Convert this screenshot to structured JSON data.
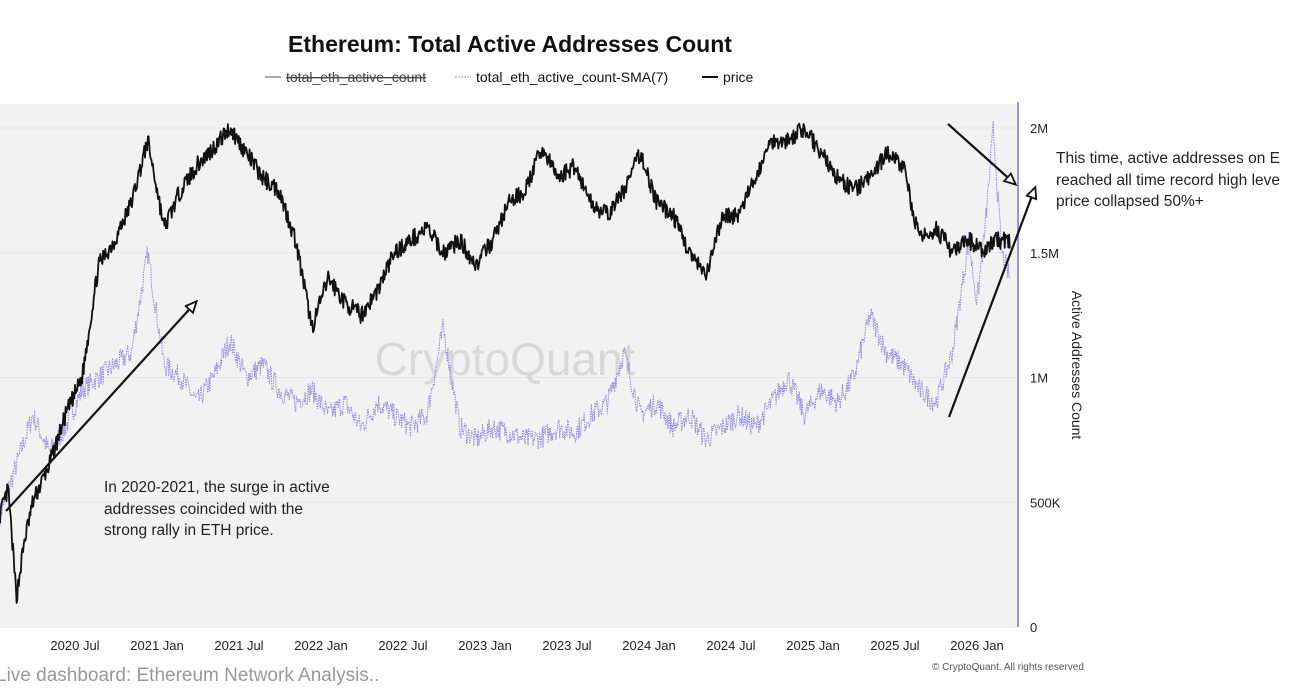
{
  "chart_data": {
    "type": "line",
    "title": "Ethereum: Total Active Addresses Count",
    "legend": [
      {
        "name": "total_eth_active_count",
        "color": "#555555",
        "hidden": true
      },
      {
        "name": "total_eth_active_count-SMA(7)",
        "color": "#9a96e0"
      },
      {
        "name": "price",
        "color": "#111111"
      }
    ],
    "legend_placement": "top-center",
    "x_tick_labels": [
      "2020 Jul",
      "2021 Jan",
      "2021 Jul",
      "2022 Jan",
      "2022 Jul",
      "2023 Jan",
      "2023 Jul",
      "2024 Jan",
      "2024 Jul",
      "2025 Jan",
      "2025 Jul",
      "2026 Jan"
    ],
    "y_right": {
      "label": "Active Addresses Count",
      "ticks": [
        {
          "value": 0,
          "label": "0"
        },
        {
          "value": 500000,
          "label": "500K"
        },
        {
          "value": 1000000,
          "label": "1M"
        },
        {
          "value": 1500000,
          "label": "1.5M"
        },
        {
          "value": 2000000,
          "label": "2M"
        }
      ],
      "range": [
        0,
        2000000
      ]
    },
    "grid": true,
    "series": [
      {
        "name": "total_eth_active_count-SMA(7)",
        "color": "#9a96e0",
        "x": [
          2020.0,
          2020.1,
          2020.2,
          2020.3,
          2020.4,
          2020.5,
          2020.6,
          2020.7,
          2020.8,
          2020.9,
          2021.0,
          2021.1,
          2021.2,
          2021.3,
          2021.4,
          2021.5,
          2021.6,
          2021.7,
          2021.8,
          2021.9,
          2022.0,
          2022.1,
          2022.2,
          2022.3,
          2022.4,
          2022.5,
          2022.6,
          2022.7,
          2022.8,
          2022.9,
          2023.0,
          2023.1,
          2023.2,
          2023.3,
          2023.4,
          2023.5,
          2023.6,
          2023.7,
          2023.8,
          2023.9,
          2024.0,
          2024.1,
          2024.2,
          2024.3,
          2024.4,
          2024.5,
          2024.6,
          2024.7,
          2024.8,
          2024.9,
          2025.0,
          2025.1,
          2025.2,
          2025.3,
          2025.4,
          2025.5,
          2025.6,
          2025.7,
          2025.8,
          2025.9,
          2025.95,
          2026.0,
          2026.05,
          2026.1,
          2026.15
        ],
        "values": [
          450000,
          650000,
          850000,
          700000,
          800000,
          950000,
          1000000,
          1050000,
          1100000,
          1500000,
          1050000,
          1000000,
          900000,
          1000000,
          1150000,
          1000000,
          1050000,
          950000,
          900000,
          950000,
          850000,
          900000,
          800000,
          900000,
          850000,
          800000,
          850000,
          1200000,
          800000,
          750000,
          800000,
          780000,
          750000,
          760000,
          800000,
          780000,
          850000,
          900000,
          1100000,
          850000,
          900000,
          800000,
          850000,
          750000,
          800000,
          850000,
          800000,
          900000,
          1000000,
          850000,
          950000,
          900000,
          1000000,
          1250000,
          1100000,
          1050000,
          950000,
          900000,
          1100000,
          1550000,
          1300000,
          1600000,
          2000000,
          1500000,
          1400000
        ]
      },
      {
        "name": "price",
        "color": "#111111",
        "x": [
          2020.0,
          2020.05,
          2020.1,
          2020.15,
          2020.2,
          2020.3,
          2020.4,
          2020.5,
          2020.6,
          2020.7,
          2020.8,
          2020.9,
          2021.0,
          2021.1,
          2021.2,
          2021.3,
          2021.4,
          2021.5,
          2021.6,
          2021.7,
          2021.8,
          2021.9,
          2022.0,
          2022.1,
          2022.2,
          2022.3,
          2022.4,
          2022.5,
          2022.6,
          2022.7,
          2022.8,
          2022.9,
          2023.0,
          2023.1,
          2023.2,
          2023.3,
          2023.4,
          2023.5,
          2023.6,
          2023.7,
          2023.8,
          2023.9,
          2024.0,
          2024.1,
          2024.2,
          2024.3,
          2024.4,
          2024.5,
          2024.6,
          2024.7,
          2024.8,
          2024.9,
          2025.0,
          2025.1,
          2025.2,
          2025.3,
          2025.4,
          2025.5,
          2025.6,
          2025.7,
          2025.8,
          2025.9,
          2026.0,
          2026.05,
          2026.1,
          2026.15
        ],
        "values": [
          450000,
          550000,
          120000,
          350000,
          500000,
          650000,
          850000,
          1000000,
          1450000,
          1550000,
          1700000,
          1950000,
          1600000,
          1750000,
          1850000,
          1920000,
          2000000,
          1900000,
          1800000,
          1750000,
          1550000,
          1200000,
          1400000,
          1300000,
          1250000,
          1350000,
          1500000,
          1550000,
          1600000,
          1500000,
          1550000,
          1450000,
          1550000,
          1700000,
          1750000,
          1920000,
          1800000,
          1850000,
          1700000,
          1650000,
          1750000,
          1900000,
          1700000,
          1650000,
          1500000,
          1400000,
          1650000,
          1650000,
          1800000,
          1950000,
          1950000,
          2000000,
          1900000,
          1800000,
          1750000,
          1800000,
          1900000,
          1850000,
          1550000,
          1600000,
          1500000,
          1550000,
          1500000,
          1550000,
          1550000,
          1550000
        ]
      }
    ]
  },
  "annotations": {
    "left_note": [
      "In 2020-2021, the surge in active",
      "addresses coincided with the",
      "strong rally in ETH price."
    ],
    "right_note": [
      "This time, active addresses on E",
      "reached all time record high leve",
      "price collapsed 50%+"
    ]
  },
  "watermark": "CryptoQuant",
  "footer": "Live dashboard: Ethereum Network Analysis..",
  "copyright": "© CryptoQuant. All rights reserved"
}
